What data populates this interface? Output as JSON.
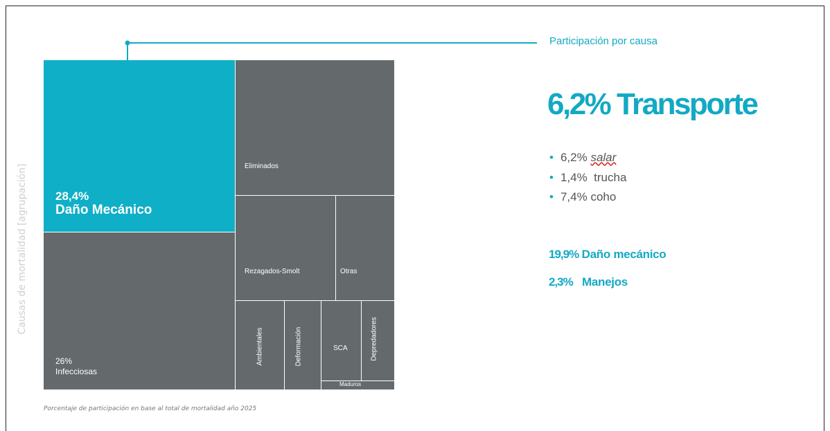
{
  "callout": "Participación por causa",
  "axis_label": "Causas de mortalidad [agrupación]",
  "footnote": "Porcentaje de participación en base al total de mortalidad año 2025",
  "treemap": {
    "tiles": [
      {
        "value": "28,4%",
        "label": "Daño Mecánico"
      },
      {
        "value": "26%",
        "label": "Infecciosas"
      },
      {
        "label": "Eliminados"
      },
      {
        "label": "Rezagados-Smolt"
      },
      {
        "label": "Otras"
      },
      {
        "label": "Ambientales"
      },
      {
        "label": "Deformación"
      },
      {
        "label": "SCA"
      },
      {
        "label": "Depredadores"
      },
      {
        "label": "Maduros"
      }
    ]
  },
  "headline": {
    "value": "6,2%",
    "label": "Transporte"
  },
  "bullets": [
    {
      "value": "6,2%",
      "label": "salar"
    },
    {
      "value": "1,4%",
      "label": "trucha"
    },
    {
      "value": "7,4%",
      "label": "coho"
    }
  ],
  "highlights": [
    {
      "value": "19,9%",
      "label": "Daño mecánico"
    },
    {
      "value": "2,3%",
      "label": "Manejos"
    }
  ]
}
